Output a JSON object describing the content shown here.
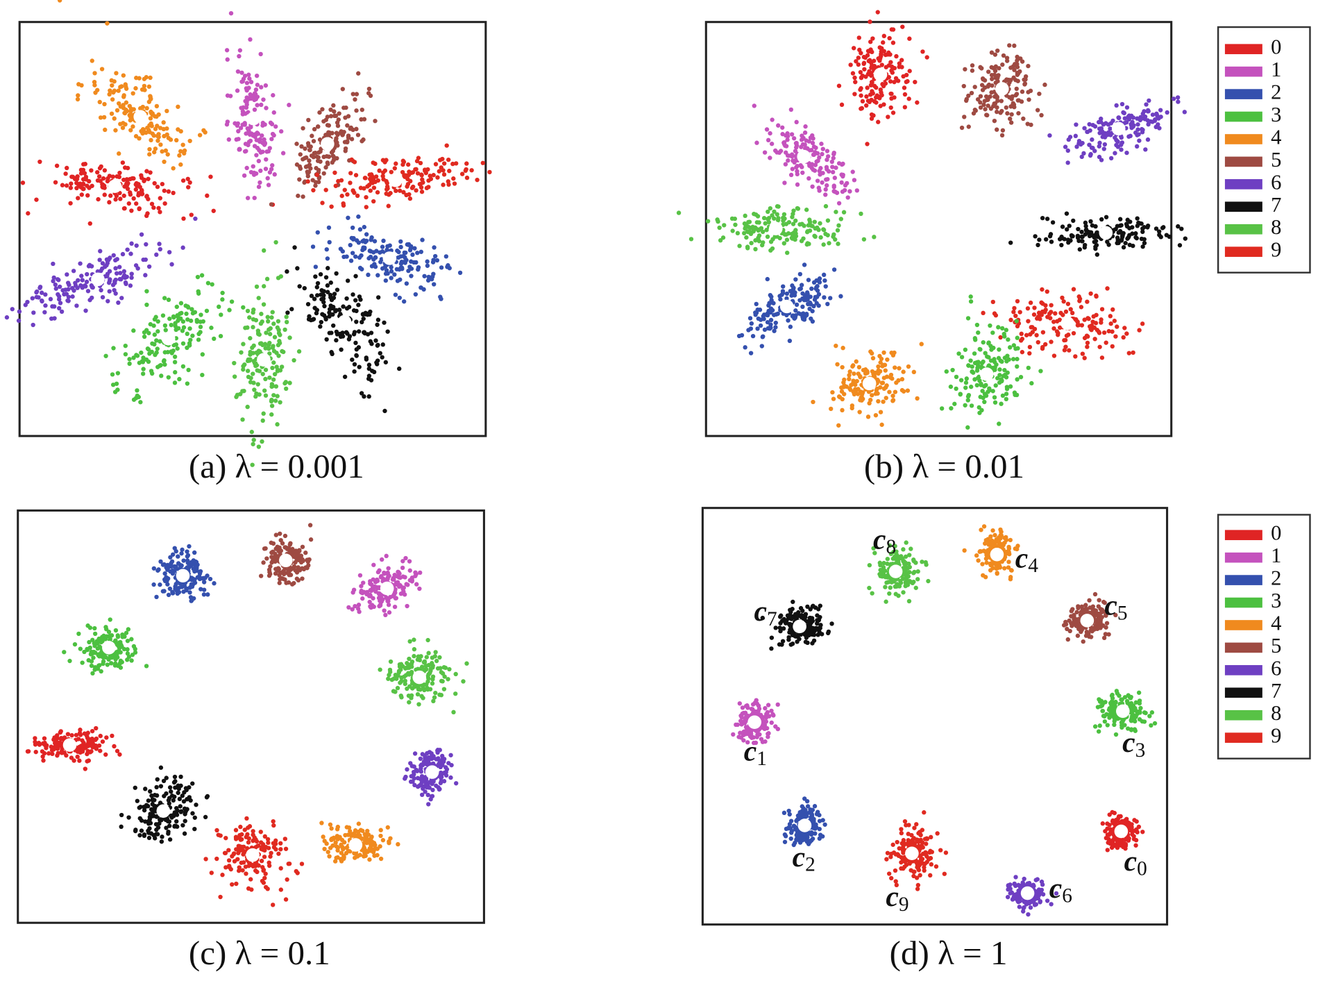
{
  "legends": [
    {
      "entries": [
        {
          "label": "0",
          "color": "#e02424"
        },
        {
          "label": "1",
          "color": "#c452bd"
        },
        {
          "label": "2",
          "color": "#3450ae"
        },
        {
          "label": "3",
          "color": "#4cc040"
        },
        {
          "label": "4",
          "color": "#f08a1e"
        },
        {
          "label": "5",
          "color": "#9e4a42"
        },
        {
          "label": "6",
          "color": "#6e3fc2"
        },
        {
          "label": "7",
          "color": "#111111"
        },
        {
          "label": "8",
          "color": "#58c246"
        },
        {
          "label": "9",
          "color": "#e02a20"
        }
      ]
    },
    {
      "entries": [
        {
          "label": "0",
          "color": "#e02424"
        },
        {
          "label": "1",
          "color": "#c452bd"
        },
        {
          "label": "2",
          "color": "#3450ae"
        },
        {
          "label": "3",
          "color": "#4cc040"
        },
        {
          "label": "4",
          "color": "#f08a1e"
        },
        {
          "label": "5",
          "color": "#9e4a42"
        },
        {
          "label": "6",
          "color": "#6e3fc2"
        },
        {
          "label": "7",
          "color": "#111111"
        },
        {
          "label": "8",
          "color": "#58c246"
        },
        {
          "label": "9",
          "color": "#e02a20"
        }
      ]
    }
  ],
  "panels": [
    {
      "caption": "(a)  λ = 0.001"
    },
    {
      "caption": "(b)  λ = 0.01"
    },
    {
      "caption": "(c)  λ = 0.1"
    },
    {
      "caption": "(d)  λ = 1",
      "center_labels": [
        {
          "symbol": "c",
          "index": "0"
        },
        {
          "symbol": "c",
          "index": "1"
        },
        {
          "symbol": "c",
          "index": "2"
        },
        {
          "symbol": "c",
          "index": "3"
        },
        {
          "symbol": "c",
          "index": "4"
        },
        {
          "symbol": "c",
          "index": "5"
        },
        {
          "symbol": "c",
          "index": "6"
        },
        {
          "symbol": "c",
          "index": "7"
        },
        {
          "symbol": "c",
          "index": "8"
        },
        {
          "symbol": "c",
          "index": "9"
        }
      ]
    }
  ]
}
